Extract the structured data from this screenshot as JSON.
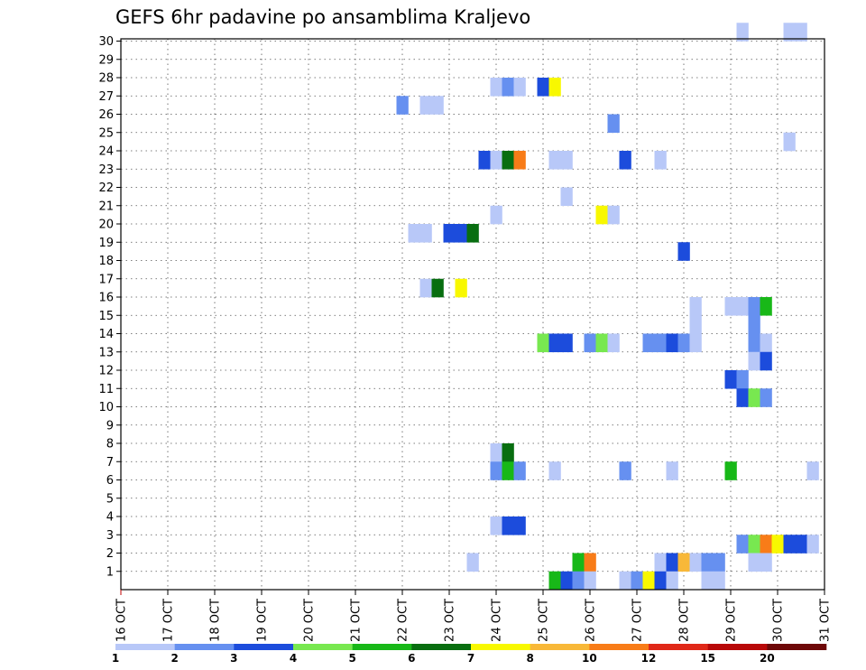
{
  "chart_data": {
    "type": "heatmap",
    "title": "GEFS 6hr padavine po ansamblima Kraljevo",
    "x_labels": [
      "16 OCT",
      "17 OCT",
      "18 OCT",
      "19 OCT",
      "20 OCT",
      "21 OCT",
      "22 OCT",
      "23 OCT",
      "24 OCT",
      "25 OCT",
      "26 OCT",
      "27 OCT",
      "28 OCT",
      "29 OCT",
      "30 OCT",
      "31 OCT"
    ],
    "y_labels": [
      "1",
      "2",
      "3",
      "4",
      "5",
      "6",
      "7",
      "8",
      "9",
      "10",
      "11",
      "12",
      "13",
      "14",
      "15",
      "16",
      "17",
      "18",
      "19",
      "20",
      "21",
      "22",
      "23",
      "24",
      "25",
      "26",
      "27",
      "28",
      "29",
      "30"
    ],
    "grid": true,
    "colorbar": {
      "labels": [
        "1",
        "2",
        "3",
        "4",
        "5",
        "6",
        "7",
        "8",
        "10",
        "12",
        "15",
        "20"
      ],
      "colors": [
        "#b8c8f8",
        "#6690f0",
        "#1c4cdc",
        "#78e850",
        "#18b818",
        "#086e10",
        "#f8f800",
        "#f8b838",
        "#f87c18",
        "#e02818",
        "#b80808",
        "#6e0808"
      ]
    },
    "cells": [
      {
        "member": 30,
        "day": 29.25,
        "mm": 1
      },
      {
        "member": 30,
        "day": 30.25,
        "mm": 1
      },
      {
        "member": 30,
        "day": 30.5,
        "mm": 1
      },
      {
        "member": 27,
        "day": 24.0,
        "mm": 1
      },
      {
        "member": 27,
        "day": 24.25,
        "mm": 2
      },
      {
        "member": 27,
        "day": 24.5,
        "mm": 1
      },
      {
        "member": 27,
        "day": 25.0,
        "mm": 3
      },
      {
        "member": 27,
        "day": 25.25,
        "mm": 7
      },
      {
        "member": 26,
        "day": 22.0,
        "mm": 2
      },
      {
        "member": 26,
        "day": 22.5,
        "mm": 1
      },
      {
        "member": 26,
        "day": 22.75,
        "mm": 1
      },
      {
        "member": 25,
        "day": 26.5,
        "mm": 2
      },
      {
        "member": 24,
        "day": 30.25,
        "mm": 1
      },
      {
        "member": 23,
        "day": 23.75,
        "mm": 3
      },
      {
        "member": 23,
        "day": 24.0,
        "mm": 1
      },
      {
        "member": 23,
        "day": 24.25,
        "mm": 6
      },
      {
        "member": 23,
        "day": 24.5,
        "mm": 10
      },
      {
        "member": 23,
        "day": 25.25,
        "mm": 1
      },
      {
        "member": 23,
        "day": 25.5,
        "mm": 1
      },
      {
        "member": 23,
        "day": 26.75,
        "mm": 3
      },
      {
        "member": 23,
        "day": 27.5,
        "mm": 1
      },
      {
        "member": 21,
        "day": 25.5,
        "mm": 1
      },
      {
        "member": 20,
        "day": 24.0,
        "mm": 1
      },
      {
        "member": 20,
        "day": 26.25,
        "mm": 7
      },
      {
        "member": 20,
        "day": 26.5,
        "mm": 1
      },
      {
        "member": 19,
        "day": 22.25,
        "mm": 1
      },
      {
        "member": 19,
        "day": 22.5,
        "mm": 1
      },
      {
        "member": 19,
        "day": 23.0,
        "mm": 3
      },
      {
        "member": 19,
        "day": 23.25,
        "mm": 3
      },
      {
        "member": 19,
        "day": 23.5,
        "mm": 6
      },
      {
        "member": 18,
        "day": 28.0,
        "mm": 3
      },
      {
        "member": 16,
        "day": 22.5,
        "mm": 1
      },
      {
        "member": 16,
        "day": 22.75,
        "mm": 6
      },
      {
        "member": 16,
        "day": 23.25,
        "mm": 7
      },
      {
        "member": 15,
        "day": 28.25,
        "mm": 1
      },
      {
        "member": 15,
        "day": 29.0,
        "mm": 1
      },
      {
        "member": 15,
        "day": 29.25,
        "mm": 1
      },
      {
        "member": 15,
        "day": 29.5,
        "mm": 2
      },
      {
        "member": 15,
        "day": 29.75,
        "mm": 5
      },
      {
        "member": 14,
        "day": 28.25,
        "mm": 1
      },
      {
        "member": 14,
        "day": 29.5,
        "mm": 2
      },
      {
        "member": 13,
        "day": 25.0,
        "mm": 4
      },
      {
        "member": 13,
        "day": 25.25,
        "mm": 3
      },
      {
        "member": 13,
        "day": 25.5,
        "mm": 3
      },
      {
        "member": 13,
        "day": 26.0,
        "mm": 2
      },
      {
        "member": 13,
        "day": 26.25,
        "mm": 4
      },
      {
        "member": 13,
        "day": 26.5,
        "mm": 1
      },
      {
        "member": 13,
        "day": 27.25,
        "mm": 2
      },
      {
        "member": 13,
        "day": 27.5,
        "mm": 2
      },
      {
        "member": 13,
        "day": 27.75,
        "mm": 3
      },
      {
        "member": 13,
        "day": 28.0,
        "mm": 2
      },
      {
        "member": 13,
        "day": 28.25,
        "mm": 1
      },
      {
        "member": 13,
        "day": 29.5,
        "mm": 2
      },
      {
        "member": 13,
        "day": 29.75,
        "mm": 1
      },
      {
        "member": 12,
        "day": 29.5,
        "mm": 1
      },
      {
        "member": 12,
        "day": 29.75,
        "mm": 3
      },
      {
        "member": 11,
        "day": 29.0,
        "mm": 3
      },
      {
        "member": 11,
        "day": 29.25,
        "mm": 2
      },
      {
        "member": 10,
        "day": 29.25,
        "mm": 3
      },
      {
        "member": 10,
        "day": 29.5,
        "mm": 4
      },
      {
        "member": 10,
        "day": 29.75,
        "mm": 2
      },
      {
        "member": 7,
        "day": 24.0,
        "mm": 1
      },
      {
        "member": 7,
        "day": 24.25,
        "mm": 6
      },
      {
        "member": 6,
        "day": 24.0,
        "mm": 2
      },
      {
        "member": 6,
        "day": 24.25,
        "mm": 5
      },
      {
        "member": 6,
        "day": 24.5,
        "mm": 2
      },
      {
        "member": 6,
        "day": 25.25,
        "mm": 1
      },
      {
        "member": 6,
        "day": 26.75,
        "mm": 2
      },
      {
        "member": 6,
        "day": 27.75,
        "mm": 1
      },
      {
        "member": 6,
        "day": 29.0,
        "mm": 5
      },
      {
        "member": 6,
        "day": 30.75,
        "mm": 1
      },
      {
        "member": 3,
        "day": 24.0,
        "mm": 1
      },
      {
        "member": 3,
        "day": 24.25,
        "mm": 3
      },
      {
        "member": 3,
        "day": 24.5,
        "mm": 3
      },
      {
        "member": 2,
        "day": 29.25,
        "mm": 2
      },
      {
        "member": 2,
        "day": 29.5,
        "mm": 4
      },
      {
        "member": 2,
        "day": 29.75,
        "mm": 10
      },
      {
        "member": 2,
        "day": 30.0,
        "mm": 7
      },
      {
        "member": 2,
        "day": 30.25,
        "mm": 3
      },
      {
        "member": 2,
        "day": 30.5,
        "mm": 3
      },
      {
        "member": 2,
        "day": 30.75,
        "mm": 1
      },
      {
        "member": 1,
        "day": 23.5,
        "mm": 1
      },
      {
        "member": 1,
        "day": 25.75,
        "mm": 5
      },
      {
        "member": 1,
        "day": 26.0,
        "mm": 10
      },
      {
        "member": 1,
        "day": 27.5,
        "mm": 1
      },
      {
        "member": 1,
        "day": 27.75,
        "mm": 3
      },
      {
        "member": 1,
        "day": 28.0,
        "mm": 8
      },
      {
        "member": 1,
        "day": 28.25,
        "mm": 1
      },
      {
        "member": 1,
        "day": 28.5,
        "mm": 2
      },
      {
        "member": 1,
        "day": 28.75,
        "mm": 2
      },
      {
        "member": 1,
        "day": 29.5,
        "mm": 1
      },
      {
        "member": 1,
        "day": 29.75,
        "mm": 1
      },
      {
        "member": 0,
        "day": 25.25,
        "mm": 5
      },
      {
        "member": 0,
        "day": 25.5,
        "mm": 3
      },
      {
        "member": 0,
        "day": 25.75,
        "mm": 2
      },
      {
        "member": 0,
        "day": 26.0,
        "mm": 1
      },
      {
        "member": 0,
        "day": 26.75,
        "mm": 1
      },
      {
        "member": 0,
        "day": 27.0,
        "mm": 2
      },
      {
        "member": 0,
        "day": 27.25,
        "mm": 7
      },
      {
        "member": 0,
        "day": 27.5,
        "mm": 3
      },
      {
        "member": 0,
        "day": 27.75,
        "mm": 1
      },
      {
        "member": 0,
        "day": 28.5,
        "mm": 1
      },
      {
        "member": 0,
        "day": 28.75,
        "mm": 1
      }
    ]
  }
}
